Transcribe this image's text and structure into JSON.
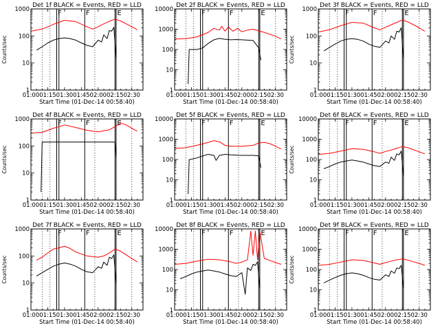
{
  "chart_data": {
    "type": "line",
    "grid": false,
    "y_scale": "log",
    "xlim": [
      "01:00",
      "02:40"
    ],
    "ylim": [
      1,
      10000
    ],
    "x_ticks": [
      "01:00",
      "01:15",
      "01:30",
      "01:45",
      "02:00",
      "02:15",
      "02:30"
    ],
    "y_ticks": [
      "1",
      "10",
      "100",
      "1000",
      "10000"
    ],
    "xlabel": "Start Time (01-Dec-14 00:58:40)",
    "ylabel": "Counts/sec",
    "colors": {
      "events": "#000000",
      "lld": "#ff0000"
    },
    "markers": {
      "dotted": [
        "01:10",
        "01:17",
        "01:57",
        "02:16",
        "02:30"
      ],
      "solid": [
        "01:23",
        "01:25",
        "01:48",
        "02:15",
        "02:16"
      ],
      "labels": [
        {
          "text": "F",
          "at": "01:23"
        },
        {
          "text": "F",
          "at": "01:48"
        },
        {
          "text": "E",
          "at": "02:16"
        }
      ]
    },
    "panels": [
      {
        "title": "Det 1f BLACK = Events, RED = LLD",
        "ylim": [
          1,
          1000
        ],
        "y_ticks": [
          "1",
          "10",
          "100",
          "1000"
        ],
        "has_ylabel": true,
        "series": [
          {
            "color_key": "lld",
            "x": [
              "01:00",
              "01:10",
              "01:20",
              "01:30",
              "01:40",
              "01:50",
              "01:55",
              "02:00",
              "02:05",
              "02:10",
              "02:15",
              "02:20",
              "02:25",
              "02:30",
              "02:35"
            ],
            "values": [
              150,
              180,
              270,
              380,
              340,
              220,
              180,
              220,
              280,
              350,
              420,
              360,
              280,
              220,
              170
            ]
          },
          {
            "color_key": "events",
            "x": [
              "01:05",
              "01:10",
              "01:15",
              "01:20",
              "01:25",
              "01:30",
              "01:35",
              "01:40",
              "01:45",
              "01:50",
              "01:55",
              "02:00",
              "02:03",
              "02:05",
              "02:08",
              "02:10",
              "02:12",
              "02:14",
              "02:15",
              "02:16"
            ],
            "values": [
              30,
              40,
              55,
              70,
              80,
              85,
              80,
              70,
              55,
              45,
              40,
              70,
              60,
              110,
              80,
              160,
              150,
              210,
              55,
              15
            ]
          }
        ]
      },
      {
        "title": "Det 2f BLACK = Events, RED = LLD",
        "ylim": [
          1,
          10000
        ],
        "y_ticks": [
          "1",
          "10",
          "100",
          "1000",
          "10000"
        ],
        "has_ylabel": false,
        "series": [
          {
            "color_key": "lld",
            "x": [
              "01:00",
              "01:10",
              "01:20",
              "01:30",
              "01:35",
              "01:40",
              "01:42",
              "01:45",
              "01:48",
              "01:52",
              "01:56",
              "02:00",
              "02:05",
              "02:10",
              "02:20",
              "02:30",
              "02:35"
            ],
            "values": [
              330,
              340,
              420,
              700,
              1100,
              900,
              1400,
              800,
              1300,
              800,
              1100,
              750,
              900,
              1000,
              700,
              450,
              330
            ]
          },
          {
            "color_key": "events",
            "x": [
              "01:12",
              "01:13",
              "01:14",
              "01:20",
              "01:25",
              "01:30",
              "01:35",
              "01:40",
              "01:45",
              "01:50",
              "01:55",
              "02:00",
              "02:05",
              "02:10",
              "02:15",
              "02:17"
            ],
            "values": [
              2,
              100,
              100,
              100,
              120,
              200,
              300,
              350,
              320,
              300,
              310,
              300,
              290,
              280,
              120,
              30
            ]
          }
        ]
      },
      {
        "title": "Det 3f BLACK = Events, RED = LLD",
        "ylim": [
          1,
          1000
        ],
        "y_ticks": [
          "1",
          "10",
          "100",
          "1000"
        ],
        "has_ylabel": true,
        "series": [
          {
            "color_key": "lld",
            "x": [
              "01:00",
              "01:10",
              "01:20",
              "01:30",
              "01:40",
              "01:50",
              "01:55",
              "02:00",
              "02:05",
              "02:10",
              "02:15",
              "02:20",
              "02:25",
              "02:30",
              "02:35"
            ],
            "values": [
              140,
              170,
              240,
              320,
              300,
              200,
              170,
              210,
              260,
              320,
              390,
              330,
              260,
              200,
              150
            ]
          },
          {
            "color_key": "events",
            "x": [
              "01:05",
              "01:10",
              "01:15",
              "01:20",
              "01:25",
              "01:30",
              "01:35",
              "01:40",
              "01:45",
              "01:50",
              "01:55",
              "02:00",
              "02:03",
              "02:05",
              "02:08",
              "02:10",
              "02:12",
              "02:14",
              "02:15",
              "02:16"
            ],
            "values": [
              28,
              38,
              50,
              65,
              75,
              80,
              75,
              65,
              50,
              42,
              38,
              65,
              55,
              100,
              75,
              150,
              140,
              200,
              50,
              15
            ]
          }
        ]
      },
      {
        "title": "Det 4f BLACK = Events, RED = LLD",
        "ylim": [
          1,
          1000
        ],
        "y_ticks": [
          "1",
          "10",
          "100",
          "1000"
        ],
        "has_ylabel": true,
        "series": [
          {
            "color_key": "lld",
            "x": [
              "01:00",
              "01:10",
              "01:20",
              "01:30",
              "01:40",
              "01:50",
              "02:00",
              "02:10",
              "02:15",
              "02:20",
              "02:25",
              "02:30",
              "02:35"
            ],
            "values": [
              300,
              320,
              450,
              600,
              480,
              380,
              330,
              400,
              520,
              700,
              600,
              450,
              350
            ]
          },
          {
            "color_key": "events",
            "x": [
              "01:09",
              "01:10",
              "01:11",
              "01:20",
              "01:30",
              "01:40",
              "01:50",
              "02:00",
              "02:10",
              "02:15",
              "02:16"
            ],
            "values": [
              2,
              140,
              140,
              140,
              140,
              140,
              140,
              140,
              140,
              140,
              40
            ]
          }
        ]
      },
      {
        "title": "Det 5f BLACK = Events, RED = LLD",
        "ylim": [
          1,
          10000
        ],
        "y_ticks": [
          "1",
          "10",
          "100",
          "1000",
          "10000"
        ],
        "has_ylabel": false,
        "series": [
          {
            "color_key": "lld",
            "x": [
              "01:00",
              "01:10",
              "01:20",
              "01:30",
              "01:35",
              "01:40",
              "01:45",
              "01:50",
              "02:00",
              "02:10",
              "02:15",
              "02:20",
              "02:25",
              "02:30",
              "02:35"
            ],
            "values": [
              350,
              380,
              500,
              700,
              850,
              750,
              500,
              450,
              450,
              500,
              650,
              700,
              600,
              450,
              330
            ]
          },
          {
            "color_key": "events",
            "x": [
              "01:12",
              "01:13",
              "01:14",
              "01:20",
              "01:25",
              "01:30",
              "01:35",
              "01:37",
              "01:40",
              "01:45",
              "01:50",
              "02:00",
              "02:10",
              "02:15",
              "02:17"
            ],
            "values": [
              2,
              100,
              100,
              120,
              150,
              180,
              160,
              90,
              160,
              180,
              170,
              160,
              160,
              150,
              40
            ]
          }
        ]
      },
      {
        "title": "Det 6f BLACK = Events, RED = LLD",
        "ylim": [
          1,
          10000
        ],
        "y_ticks": [
          "1",
          "10",
          "100",
          "1000",
          "10000"
        ],
        "has_ylabel": true,
        "series": [
          {
            "color_key": "lld",
            "x": [
              "01:00",
              "01:10",
              "01:20",
              "01:30",
              "01:40",
              "01:50",
              "01:55",
              "02:00",
              "02:05",
              "02:10",
              "02:15",
              "02:20",
              "02:25",
              "02:30",
              "02:35"
            ],
            "values": [
              180,
              200,
              260,
              340,
              320,
              240,
              200,
              250,
              290,
              360,
              430,
              380,
              300,
              240,
              190
            ]
          },
          {
            "color_key": "events",
            "x": [
              "01:05",
              "01:10",
              "01:15",
              "01:20",
              "01:25",
              "01:30",
              "01:35",
              "01:40",
              "01:45",
              "01:50",
              "01:55",
              "02:00",
              "02:03",
              "02:05",
              "02:08",
              "02:10",
              "02:12",
              "02:14",
              "02:15",
              "02:16"
            ],
            "values": [
              35,
              45,
              60,
              75,
              85,
              95,
              85,
              75,
              60,
              50,
              45,
              75,
              65,
              130,
              90,
              190,
              170,
              260,
              60,
              15
            ]
          }
        ]
      },
      {
        "title": "Det 7f BLACK = Events, RED = LLD",
        "ylim": [
          1,
          1000
        ],
        "y_ticks": [
          "1",
          "10",
          "100",
          "1000"
        ],
        "has_ylabel": true,
        "series": [
          {
            "color_key": "lld",
            "x": [
              "01:05",
              "01:10",
              "01:15",
              "01:20",
              "01:25",
              "01:30",
              "01:35",
              "01:40",
              "01:50",
              "02:00",
              "02:05",
              "02:10",
              "02:15",
              "02:20",
              "02:25",
              "02:30",
              "02:35"
            ],
            "values": [
              70,
              90,
              130,
              180,
              200,
              230,
              190,
              140,
              100,
              90,
              100,
              130,
              180,
              150,
              110,
              80,
              60
            ]
          },
          {
            "color_key": "events",
            "x": [
              "01:05",
              "01:10",
              "01:15",
              "01:20",
              "01:25",
              "01:30",
              "01:35",
              "01:40",
              "01:45",
              "01:50",
              "01:55",
              "02:00",
              "02:03",
              "02:05",
              "02:08",
              "02:10",
              "02:12",
              "02:14",
              "02:15",
              "02:16"
            ],
            "values": [
              18,
              24,
              32,
              42,
              50,
              55,
              50,
              42,
              32,
              26,
              24,
              40,
              35,
              60,
              45,
              90,
              80,
              110,
              30,
              10
            ]
          }
        ]
      },
      {
        "title": "Det 8f BLACK = Events, RED = LLD",
        "ylim": [
          1,
          10000
        ],
        "y_ticks": [
          "1",
          "10",
          "100",
          "1000",
          "10000"
        ],
        "has_ylabel": false,
        "series": [
          {
            "color_key": "lld",
            "x": [
              "01:00",
              "01:10",
              "01:20",
              "01:30",
              "01:40",
              "01:50",
              "01:55",
              "02:00",
              "02:05",
              "02:08",
              "02:10",
              "02:12",
              "02:14",
              "02:16",
              "02:20",
              "02:25",
              "02:30",
              "02:35"
            ],
            "values": [
              180,
              200,
              260,
              320,
              300,
              240,
              200,
              230,
              300,
              8000,
              500,
              8000,
              300,
              8000,
              350,
              280,
              220,
              180
            ]
          },
          {
            "color_key": "events",
            "x": [
              "01:05",
              "01:10",
              "01:15",
              "01:20",
              "01:25",
              "01:30",
              "01:35",
              "01:40",
              "01:45",
              "01:50",
              "01:55",
              "02:00",
              "02:03",
              "02:05",
              "02:08",
              "02:10",
              "02:12",
              "02:14",
              "02:15",
              "02:16"
            ],
            "values": [
              35,
              45,
              60,
              75,
              85,
              95,
              85,
              75,
              60,
              50,
              45,
              70,
              6,
              120,
              90,
              180,
              160,
              240,
              50,
              12
            ]
          }
        ]
      },
      {
        "title": "Det 9f BLACK = Events, RED = LLD",
        "ylim": [
          1,
          10000
        ],
        "y_ticks": [
          "1",
          "10",
          "100",
          "1000",
          "10000"
        ],
        "has_ylabel": true,
        "series": [
          {
            "color_key": "lld",
            "x": [
              "01:00",
              "01:10",
              "01:20",
              "01:30",
              "01:40",
              "01:50",
              "01:55",
              "02:00",
              "02:05",
              "02:10",
              "02:15",
              "02:20",
              "02:25",
              "02:30",
              "02:35"
            ],
            "values": [
              160,
              180,
              230,
              300,
              280,
              210,
              180,
              220,
              260,
              300,
              330,
              290,
              240,
              200,
              160
            ]
          },
          {
            "color_key": "events",
            "x": [
              "01:05",
              "01:10",
              "01:15",
              "01:20",
              "01:25",
              "01:30",
              "01:35",
              "01:40",
              "01:45",
              "01:50",
              "01:55",
              "02:00",
              "02:03",
              "02:05",
              "02:08",
              "02:10",
              "02:12",
              "02:14",
              "02:15",
              "02:16"
            ],
            "values": [
              22,
              30,
              40,
              52,
              62,
              68,
              62,
              52,
              40,
              33,
              30,
              55,
              45,
              85,
              65,
              120,
              110,
              160,
              40,
              12
            ]
          }
        ]
      }
    ]
  }
}
